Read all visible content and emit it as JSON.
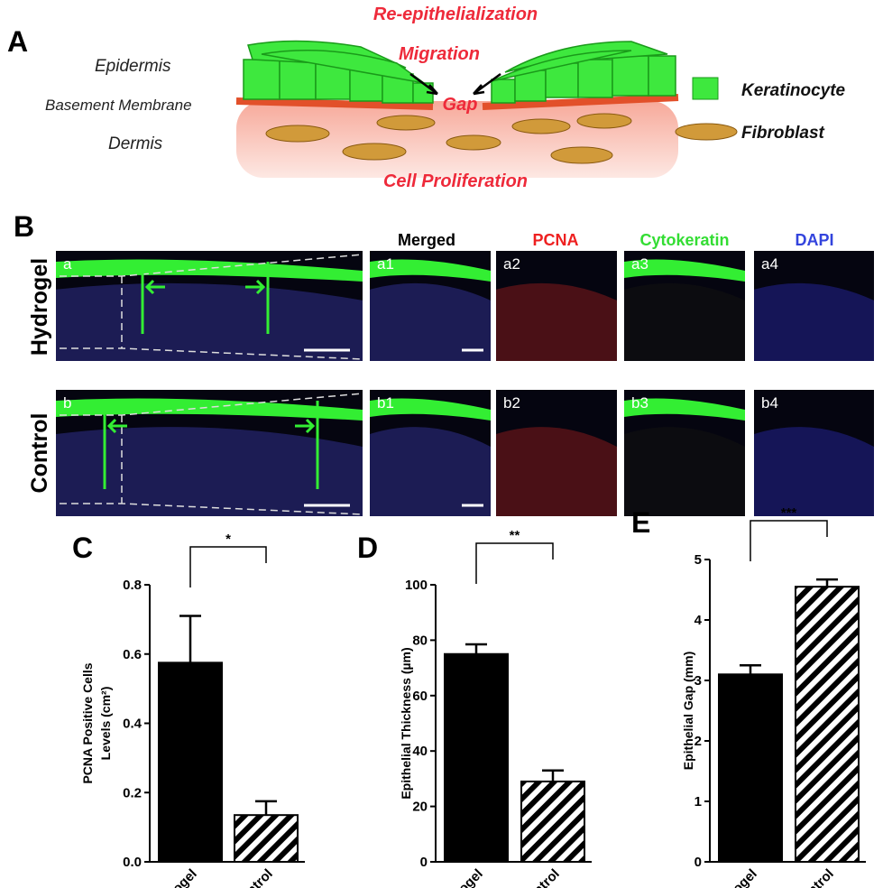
{
  "panel_a": {
    "label": "A",
    "top_label": "Re-epithelialization",
    "migration_label": "Migration",
    "gap_label": "Gap",
    "bottom_label": "Cell Proliferation",
    "layers": [
      "Epidermis",
      "Basement Membrane",
      "Dermis"
    ],
    "legend": [
      "Keratinocyte",
      "Fibroblast"
    ]
  },
  "panel_b": {
    "label": "B",
    "columns": [
      "Merged",
      "PCNA",
      "Cytokeratin",
      "DAPI"
    ],
    "rows": [
      {
        "name": "Hydrogel",
        "images": [
          "a",
          "a1",
          "a2",
          "a3",
          "a4"
        ]
      },
      {
        "name": "Control",
        "images": [
          "b",
          "b1",
          "b2",
          "b3",
          "b4"
        ]
      }
    ]
  },
  "chart_data": [
    {
      "type": "bar",
      "panel": "C",
      "ylabel": [
        "PCNA Positive Cells",
        "Levels (cm²)"
      ],
      "categories": [
        "Hydrogel",
        "Control"
      ],
      "values": [
        0.575,
        0.135
      ],
      "errors": [
        0.135,
        0.04
      ],
      "color": "#000000",
      "hatch": [
        false,
        true
      ],
      "ylim": [
        0,
        0.8
      ],
      "yticks": [
        {
          "value": 0,
          "label": "0.0"
        },
        0.2,
        0.4,
        0.6,
        0.8
      ],
      "significance": "*"
    },
    {
      "type": "bar",
      "panel": "D",
      "ylabel": [
        "Epithelial Thickness (µm)"
      ],
      "categories": [
        "Hydrogel",
        "Control"
      ],
      "values": [
        75,
        29
      ],
      "errors": [
        3.5,
        4
      ],
      "color": "#000000",
      "hatch": [
        false,
        true
      ],
      "ylim": [
        0,
        100
      ],
      "yticks": [
        0,
        20,
        40,
        60,
        80,
        100
      ],
      "significance": "**"
    },
    {
      "type": "bar",
      "panel": "E",
      "ylabel": [
        "Epithelial Gap (mm)"
      ],
      "categories": [
        "Hydrogel",
        "Control"
      ],
      "values": [
        3.1,
        4.55
      ],
      "errors": [
        0.15,
        0.12
      ],
      "color": "#000000",
      "hatch": [
        false,
        true
      ],
      "ylim": [
        0,
        5
      ],
      "yticks": [
        0,
        1,
        2,
        3,
        4,
        5
      ],
      "significance": "***"
    }
  ]
}
